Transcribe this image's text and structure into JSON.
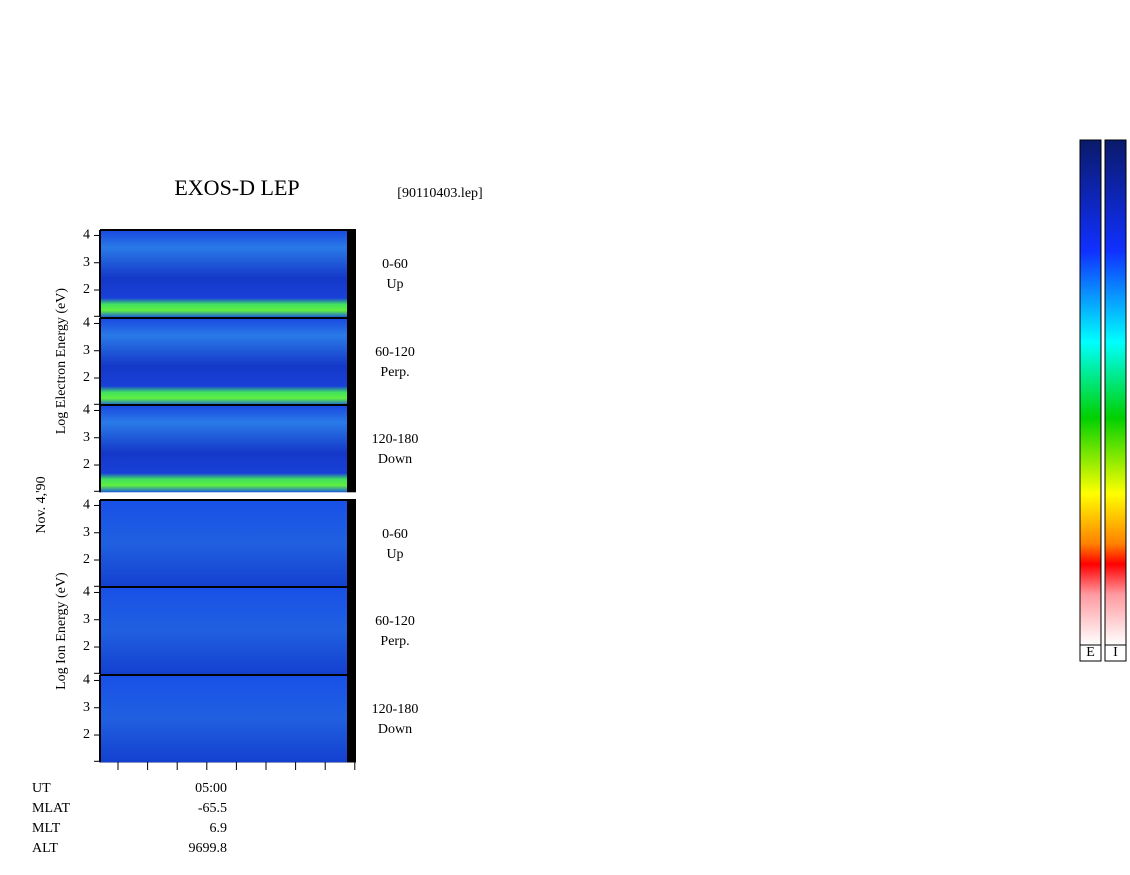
{
  "header": {
    "title": "EXOS-D LEP",
    "file": "[90110403.lep]"
  },
  "date": "Nov. 4,'90",
  "groups": [
    {
      "ylabel": "Log  Electron  Energy (eV)",
      "panels": [
        {
          "angle": "0-60",
          "direction": "Up"
        },
        {
          "angle": "60-120",
          "direction": "Perp."
        },
        {
          "angle": "120-180",
          "direction": "Down"
        }
      ]
    },
    {
      "ylabel": "Log  Ion  Energy (eV)",
      "panels": [
        {
          "angle": "0-60",
          "direction": "Up"
        },
        {
          "angle": "60-120",
          "direction": "Perp."
        },
        {
          "angle": "120-180",
          "direction": "Down"
        }
      ]
    }
  ],
  "ylim": [
    1,
    4.2
  ],
  "yticks": [
    2,
    3,
    4
  ],
  "time_axis": {
    "labels": [
      "UT",
      "MLAT",
      "MLT",
      "ALT"
    ],
    "values": [
      "05:00",
      "-65.5",
      "6.9",
      "9699.8"
    ]
  },
  "colorbar_labels": [
    "E",
    "I"
  ]
}
